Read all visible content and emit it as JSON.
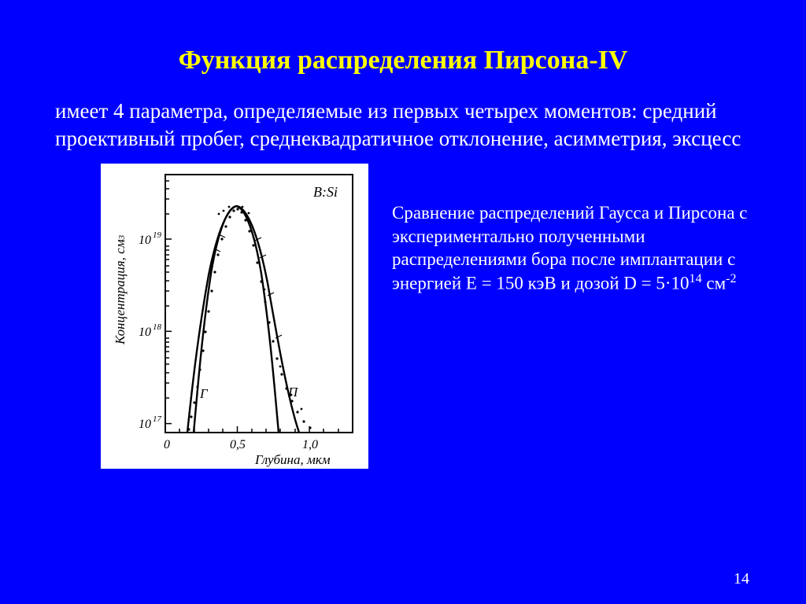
{
  "title": "Функция распределения  Пирсона-IV",
  "intro": "имеет 4 параметра, определяемые из первых четырех моментов: средний проективный пробег, среднеквадратичное отклонение, асимметрия, эксцесс",
  "caption_html": "Сравнение распределений Гаусса и Пирсона с экспериментально полученными распределениями бора после имплантации с энергией E = 150 кэВ и дозой D = 5·10<sup>14</sup> см<sup>-2</sup>",
  "page_number": "14",
  "figure": {
    "background": "#ffffff",
    "frame_stroke": "#000000",
    "frame_stroke_width": 2,
    "annotation": "B:Si",
    "x_axis": {
      "label": "Глубина, мкм",
      "ticks": [
        0,
        0.5,
        1.0
      ],
      "tick_labels": [
        "0",
        "0,5",
        "1,0"
      ],
      "min": 0,
      "max": 1.3
    },
    "y_axis": {
      "label": "Концентрация, см-3",
      "scale": "log",
      "ticks": [
        1e+17,
        1e+18,
        1e+19
      ],
      "tick_labels": [
        "10^17",
        "10^18",
        "10^19"
      ],
      "min": 8e+16,
      "max": 5e+19
    },
    "curves": {
      "gaussian": {
        "label": "Г",
        "stroke": "#000000",
        "stroke_width": 2.2,
        "note": "narrower bell, symmetric"
      },
      "pearson": {
        "label": "П",
        "stroke": "#000000",
        "stroke_width": 2.2,
        "note": "slightly wider tail on right"
      },
      "experimental": {
        "marker": "dot",
        "marker_size": 1.6,
        "fill": "#000000"
      }
    }
  }
}
